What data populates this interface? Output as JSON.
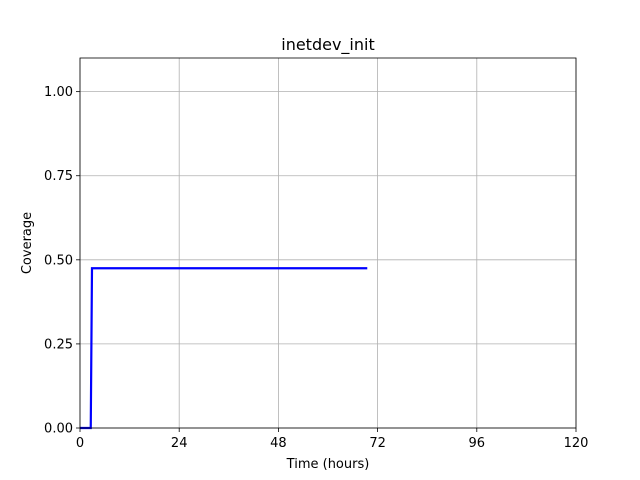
{
  "chart_data": {
    "type": "line",
    "title": "inetdev_init",
    "xlabel": "Time (hours)",
    "ylabel": "Coverage",
    "xlim": [
      0,
      120
    ],
    "ylim": [
      0,
      1.1
    ],
    "x_ticks": [
      0,
      24,
      48,
      72,
      96,
      120
    ],
    "x_tick_labels": [
      "0",
      "24",
      "48",
      "72",
      "96",
      "120"
    ],
    "y_ticks": [
      0,
      0.25,
      0.5,
      0.75,
      1.0
    ],
    "y_tick_labels": [
      "0.00",
      "0.25",
      "0.50",
      "0.75",
      "1.00"
    ],
    "grid": true,
    "series": [
      {
        "color": "#0000ff",
        "x": [
          0,
          2.6,
          2.9,
          69.5
        ],
        "y": [
          0,
          0,
          0.475,
          0.475
        ]
      }
    ]
  }
}
